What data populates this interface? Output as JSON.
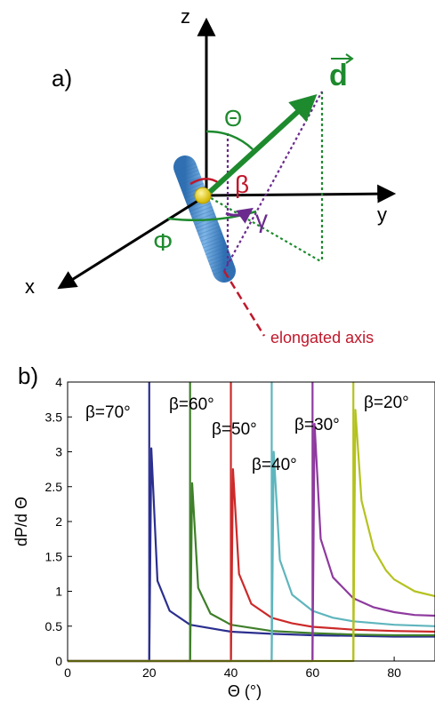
{
  "panel_a": {
    "label": "a)",
    "axes": {
      "z": "z",
      "y": "y",
      "x": "x"
    },
    "vector_label": "d",
    "angles": {
      "theta": "Θ",
      "phi": "Φ",
      "beta": "β",
      "gamma": "γ"
    },
    "elongated_axis_label": "elongated axis",
    "colors": {
      "green": "#1e8a2e",
      "red": "#c0182b",
      "purple": "#6b2a8e",
      "rod": "#4f8fd0",
      "yellow": "#e8d200"
    }
  },
  "panel_b": {
    "label": "b)",
    "xlabel": "Θ (°)",
    "ylabel": "dP/d Θ",
    "xticks": [
      "0",
      "20",
      "40",
      "60",
      "80"
    ],
    "yticks": [
      "0",
      "0.5",
      "1",
      "1.5",
      "2",
      "2.5",
      "3",
      "3.5",
      "4"
    ],
    "beta_labels": [
      "β=70°",
      "β=60°",
      "β=50°",
      "β=40°",
      "β=30°",
      "β=20°"
    ]
  },
  "chart_data": {
    "type": "line",
    "xlabel": "Θ (°)",
    "ylabel": "dP/d Θ",
    "xlim": [
      0,
      90
    ],
    "ylim": [
      0,
      4
    ],
    "grid": false,
    "series": [
      {
        "name": "β=70°",
        "color": "#2b2f8f",
        "beta": 70,
        "onset": 20,
        "x": [
          0,
          20,
          20.5,
          22,
          25,
          30,
          40,
          50,
          60,
          70,
          80,
          90
        ],
        "y": [
          0,
          0,
          3.05,
          1.15,
          0.72,
          0.52,
          0.42,
          0.39,
          0.37,
          0.36,
          0.35,
          0.35
        ]
      },
      {
        "name": "β=60°",
        "color": "#3f7f2a",
        "beta": 60,
        "onset": 30,
        "x": [
          0,
          30,
          30.5,
          32,
          35,
          40,
          50,
          60,
          70,
          80,
          90
        ],
        "y": [
          0,
          0,
          2.55,
          1.05,
          0.68,
          0.52,
          0.43,
          0.4,
          0.38,
          0.37,
          0.37
        ]
      },
      {
        "name": "β=50°",
        "color": "#cc2a2a",
        "beta": 50,
        "onset": 40,
        "x": [
          0,
          40,
          40.5,
          42,
          45,
          50,
          55,
          60,
          70,
          80,
          90
        ],
        "y": [
          0,
          0,
          2.75,
          1.25,
          0.82,
          0.62,
          0.54,
          0.49,
          0.45,
          0.43,
          0.42
        ]
      },
      {
        "name": "β=40°",
        "color": "#5fb5bd",
        "beta": 40,
        "onset": 50,
        "x": [
          0,
          50,
          50.5,
          52,
          55,
          60,
          65,
          70,
          80,
          90
        ],
        "y": [
          0,
          0,
          3.0,
          1.45,
          0.95,
          0.72,
          0.62,
          0.57,
          0.52,
          0.5
        ]
      },
      {
        "name": "β=30°",
        "color": "#8e3a9e",
        "beta": 30,
        "onset": 60,
        "x": [
          0,
          60,
          60.5,
          62,
          65,
          70,
          75,
          80,
          85,
          90
        ],
        "y": [
          0,
          0,
          3.4,
          1.75,
          1.2,
          0.9,
          0.77,
          0.7,
          0.66,
          0.65
        ]
      },
      {
        "name": "β=20°",
        "color": "#b5c21f",
        "beta": 20,
        "onset": 70,
        "x": [
          0,
          70,
          70.5,
          72,
          75,
          78,
          80,
          85,
          90
        ],
        "y": [
          0,
          0,
          3.6,
          2.3,
          1.6,
          1.3,
          1.17,
          1.0,
          0.93
        ]
      }
    ]
  }
}
